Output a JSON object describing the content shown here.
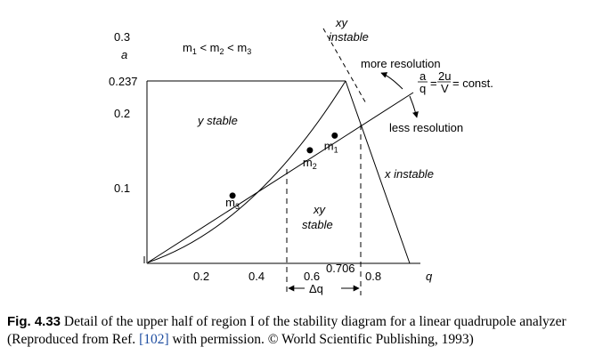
{
  "diagram": {
    "y_axis": {
      "symbol": "a",
      "ticks": [
        "0.1",
        "0.2",
        "0.237",
        "0.3"
      ]
    },
    "x_axis": {
      "symbol": "q",
      "ticks": [
        "0.2",
        "0.4",
        "0.6",
        "0.706",
        "0.8"
      ]
    },
    "regions": {
      "masses": "m1 < m2 < m3",
      "y_stable": "y stable",
      "x_instable": "x instable",
      "xy_stable_1": "xy",
      "xy_stable_2": "stable",
      "xy_instable_1": "xy",
      "xy_instable_2": "instable"
    },
    "scan_line": {
      "formula_const": "= const.",
      "more_resolution": "more resolution",
      "less_resolution": "less resolution"
    },
    "points": [
      {
        "label": "m1",
        "base": "m",
        "sub": "1",
        "q": 0.68,
        "a": 0.166
      },
      {
        "label": "m2",
        "base": "m",
        "sub": "2",
        "q": 0.59,
        "a": 0.147
      },
      {
        "label": "m3",
        "base": "m",
        "sub": "3",
        "q": 0.31,
        "a": 0.088
      }
    ],
    "delta_q": "Δq"
  },
  "caption": {
    "label": "Fig. 4.33",
    "text_before": " Detail of the upper half of region I of the stability diagram for a linear quadrupole analyzer (Reproduced from Ref. ",
    "ref": "[102]",
    "text_after": " with permission. © World Scientific Publishing, 1993)"
  }
}
